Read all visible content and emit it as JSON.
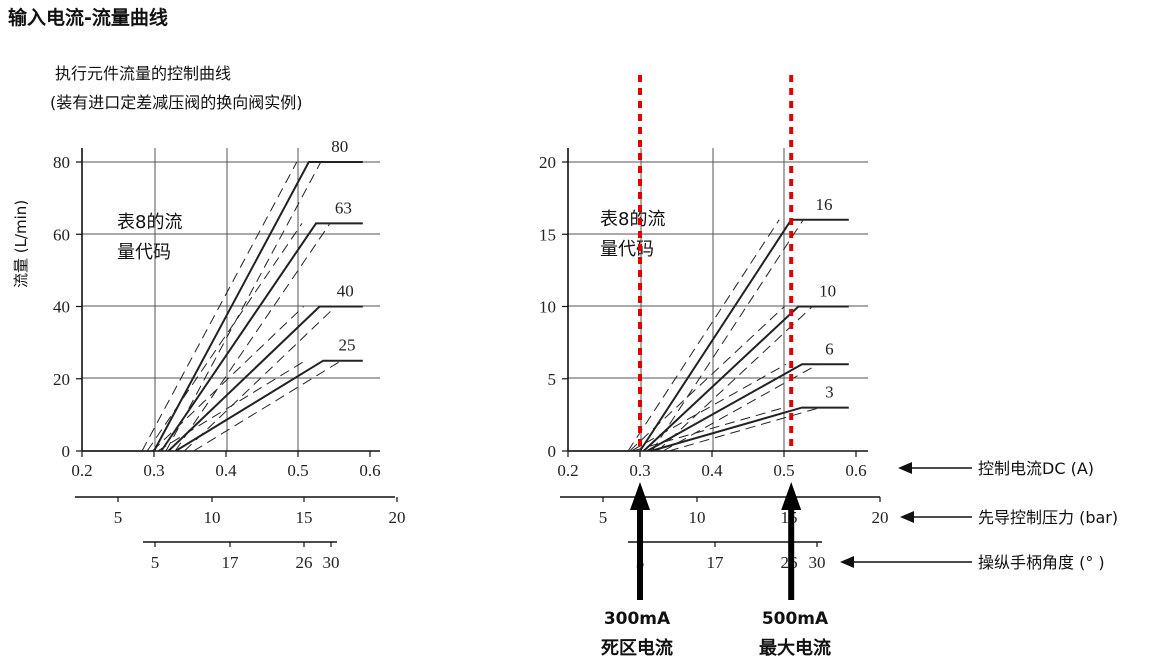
{
  "page_title": "输入电流-流量曲线",
  "left_chart_title_line1": "执行元件流量的控制曲线",
  "left_chart_title_line2": "(装有进口定差减压阀的换向阀实例)",
  "left_ylabel": "流量 (L/min)",
  "inner_label_line1": "表8的流",
  "inner_label_line2": "量代码",
  "annotations": {
    "dead_current_value": "300mA",
    "dead_current_text": "死区电流",
    "max_current_value": "500mA",
    "max_current_text": "最大电流",
    "axis_control_current": "控制电流DC (A)",
    "axis_pilot_pressure": "先导控制压力 (bar)",
    "axis_handle_angle": "操纵手柄角度 (° )"
  },
  "colors": {
    "marker": "#e00000",
    "curve": "#222222",
    "grid": "#555555"
  },
  "chart_data": [
    {
      "type": "line",
      "xlabel": "",
      "ylabel": "流量 (L/min)",
      "xlim": [
        0.2,
        0.6
      ],
      "ylim": [
        0,
        80
      ],
      "x_ticks": [
        "0.2",
        "0.3",
        "0.4",
        "0.5",
        "0.6"
      ],
      "y_ticks": [
        "0",
        "20",
        "40",
        "60",
        "80"
      ],
      "pressure_ticks": [
        "5",
        "10",
        "15",
        "20"
      ],
      "angle_ticks": [
        "5",
        "17",
        "26",
        "30"
      ],
      "series": [
        {
          "name": "80",
          "x": [
            0.3,
            0.515,
            0.59
          ],
          "y": [
            0,
            80,
            80
          ]
        },
        {
          "name": "63",
          "x": [
            0.31,
            0.525,
            0.59
          ],
          "y": [
            0,
            63,
            63
          ]
        },
        {
          "name": "40",
          "x": [
            0.32,
            0.53,
            0.59
          ],
          "y": [
            0,
            40,
            40
          ]
        },
        {
          "name": "25",
          "x": [
            0.33,
            0.535,
            0.59
          ],
          "y": [
            0,
            25,
            25
          ]
        }
      ],
      "grid": true
    },
    {
      "type": "line",
      "xlabel": "控制电流DC (A)",
      "ylabel": "",
      "xlim": [
        0.2,
        0.6
      ],
      "ylim": [
        0,
        20
      ],
      "x_ticks": [
        "0.2",
        "0.3",
        "0.4",
        "0.5",
        "0.6"
      ],
      "y_ticks": [
        "0",
        "5",
        "10",
        "15",
        "20"
      ],
      "pressure_ticks": [
        "5",
        "10",
        "15",
        "20"
      ],
      "angle_ticks": [
        "5",
        "17",
        "26",
        "30"
      ],
      "series": [
        {
          "name": "16",
          "x": [
            0.3,
            0.51,
            0.59
          ],
          "y": [
            0,
            16,
            16
          ]
        },
        {
          "name": "10",
          "x": [
            0.305,
            0.52,
            0.59
          ],
          "y": [
            0,
            10,
            10
          ]
        },
        {
          "name": "6",
          "x": [
            0.31,
            0.525,
            0.59
          ],
          "y": [
            0,
            6,
            6
          ]
        },
        {
          "name": "3",
          "x": [
            0.315,
            0.525,
            0.59
          ],
          "y": [
            0,
            3,
            3
          ]
        }
      ],
      "markers": [
        {
          "x": 0.3,
          "label": "300mA"
        },
        {
          "x": 0.51,
          "label": "500mA"
        }
      ],
      "grid": true
    }
  ]
}
